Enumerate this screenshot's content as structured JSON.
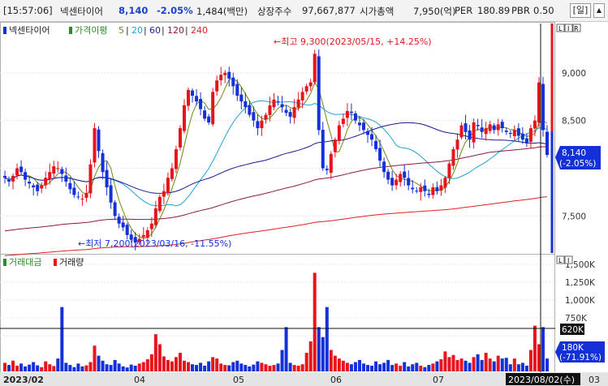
{
  "header": {
    "time": "[15:57:06]",
    "stock_name": "넥센타이어",
    "price": "8,140",
    "change": "-2.05%",
    "amount": "1,484(백만)",
    "shares_label": "상장주수",
    "shares_value": "97,667,877",
    "cap_label": "시가총액",
    "cap_value": "7,950(억)",
    "per_label": "PER",
    "per_value": "180.89",
    "pbr_label": "PBR",
    "pbr_value": "0.50",
    "period_button": "[일]",
    "scroll_button": "▲"
  },
  "price_panel": {
    "legend": {
      "name": "넥센타이어",
      "ma_label": "가격이평",
      "ma_periods": [
        "5",
        "20",
        "60",
        "120",
        "240"
      ],
      "ma_colors": [
        "#6f8a0f",
        "#20a0d8",
        "#1a1a8c",
        "#8b1a3a",
        "#e02020"
      ]
    },
    "corner_buttons": [
      "L",
      "I",
      "R"
    ],
    "high_annotation": "←최고 9,300(2023/05/15, +14.25%)",
    "low_annotation": "←최저 7,200(2023/03/16, -11.55%)",
    "current_label": {
      "price": "8,140",
      "change": "(-2.05%)"
    }
  },
  "volume_panel": {
    "legend": {
      "label1": "거래대금",
      "label2": "거래량"
    },
    "corner_buttons": [
      "L",
      "I"
    ],
    "current_label": {
      "value": "180K",
      "change": "(-71.91%)"
    },
    "marker_label": "620K"
  },
  "date_axis": {
    "labels": [
      "2023/02",
      "04",
      "05",
      "06",
      "07"
    ],
    "cursor_label": "2023/08/02(수)",
    "right_label": "03"
  },
  "colors": {
    "up": "#e8141c",
    "down": "#1430d8"
  },
  "chart_data": [
    {
      "type": "candlestick",
      "ylim": [
        7120,
        9500
      ],
      "yticks": [
        7500,
        8000,
        8500,
        9000
      ],
      "ytick_labels": [
        "7,500",
        "",
        "8,500",
        "9,000"
      ],
      "n": 134,
      "close": [
        7900,
        7860,
        7920,
        8000,
        7960,
        7880,
        7840,
        7800,
        7760,
        7820,
        7900,
        7960,
        8020,
        8000,
        7940,
        7860,
        7780,
        7720,
        7700,
        7680,
        7740,
        8040,
        8420,
        8180,
        7960,
        7800,
        7640,
        7500,
        7420,
        7380,
        7300,
        7250,
        7220,
        7260,
        7300,
        7350,
        7420,
        7580,
        7700,
        7760,
        7900,
        8000,
        8200,
        8420,
        8660,
        8820,
        8760,
        8700,
        8620,
        8520,
        8480,
        8800,
        8920,
        8980,
        9000,
        8940,
        8860,
        8760,
        8700,
        8640,
        8560,
        8500,
        8420,
        8500,
        8560,
        8660,
        8720,
        8700,
        8640,
        8580,
        8540,
        8640,
        8720,
        8800,
        8860,
        8900,
        9200,
        8400,
        8000,
        7980,
        8150,
        8300,
        8450,
        8520,
        8600,
        8580,
        8500,
        8450,
        8400,
        8350,
        8300,
        8200,
        8080,
        7960,
        7880,
        7820,
        7880,
        7940,
        7900,
        7820,
        7780,
        7760,
        7800,
        7760,
        7720,
        7800,
        7760,
        7820,
        7900,
        8050,
        8200,
        8300,
        8450,
        8380,
        8300,
        8480,
        8440,
        8380,
        8420,
        8460,
        8400,
        8460,
        8420,
        8380,
        8360,
        8400,
        8340,
        8300,
        8260,
        8420,
        8500,
        8900,
        8400,
        8140
      ],
      "volume": [
        120,
        90,
        150,
        80,
        110,
        70,
        95,
        130,
        85,
        60,
        140,
        100,
        75,
        180,
        900,
        120,
        90,
        60,
        110,
        70,
        85,
        130,
        360,
        220,
        150,
        100,
        90,
        160,
        110,
        70,
        55,
        95,
        80,
        110,
        130,
        170,
        240,
        520,
        380,
        210,
        160,
        140,
        200,
        260,
        150,
        130,
        100,
        90,
        120,
        80,
        140,
        200,
        180,
        110,
        90,
        85,
        130,
        150,
        110,
        90,
        70,
        95,
        140,
        120,
        100,
        80,
        90,
        110,
        300,
        620,
        120,
        90,
        80,
        100,
        260,
        420,
        1380,
        620,
        480,
        900,
        300,
        220,
        180,
        150,
        120,
        100,
        130,
        160,
        110,
        90,
        80,
        140,
        100,
        120,
        160,
        90,
        110,
        80,
        130,
        70,
        100,
        120,
        80,
        60,
        90,
        110,
        140,
        170,
        280,
        200,
        230,
        160,
        180,
        150,
        120,
        200,
        240,
        160,
        260,
        180,
        140,
        220,
        180,
        190,
        100,
        180,
        100,
        120,
        80,
        300,
        640,
        380,
        620,
        180
      ]
    },
    {
      "type": "bar",
      "ylim": [
        0,
        1600
      ],
      "yticks": [
        500,
        750,
        1000,
        1250,
        1500
      ],
      "ytick_labels": [
        "",
        "750K",
        "1,000K",
        "1,250K",
        "1,500K"
      ]
    }
  ]
}
